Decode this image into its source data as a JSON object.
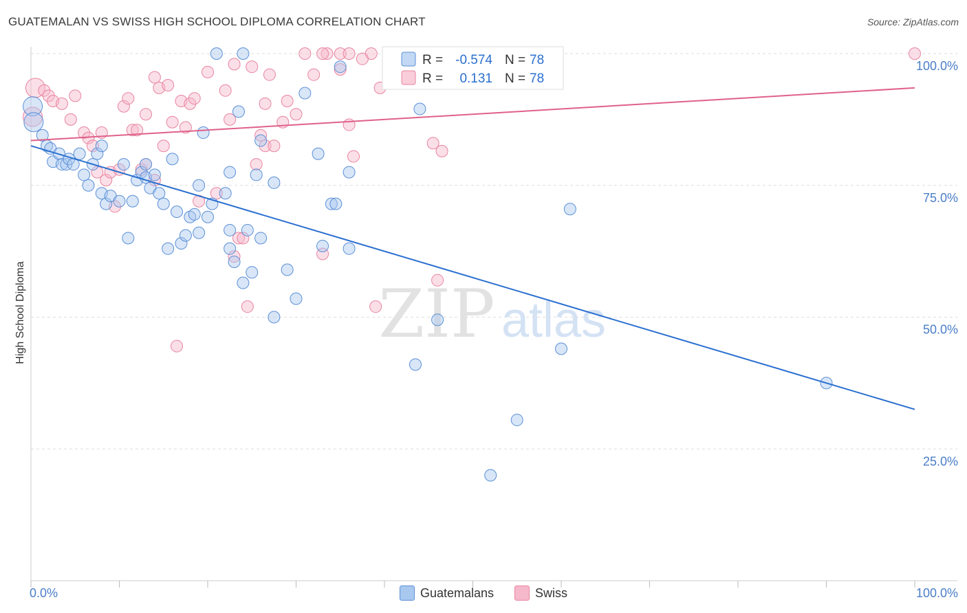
{
  "title": "GUATEMALAN VS SWISS HIGH SCHOOL DIPLOMA CORRELATION CHART",
  "source": "Source: ZipAtlas.com",
  "watermark": {
    "zip": "ZIP",
    "atlas": "atlas"
  },
  "colors": {
    "blue_fill": "#a8c8f0",
    "blue_stroke": "#5b8fd6",
    "blue_line": "#2a6fcf",
    "pink_fill": "#f6b8cb",
    "pink_stroke": "#e8849f",
    "pink_line": "#e0608a",
    "axis_text": "#4a7ec8",
    "grid": "#dddddd"
  },
  "legend_top": {
    "rows": [
      {
        "r_label": "R =",
        "r_value": "-0.574",
        "n_label": "N =",
        "n_value": "78"
      },
      {
        "r_label": "R =",
        "r_value": "0.131",
        "n_label": "N =",
        "n_value": "78"
      }
    ]
  },
  "legend_bottom": [
    "Guatemalans",
    "Swiss"
  ],
  "chart_data": {
    "type": "scatter",
    "title": "GUATEMALAN VS SWISS HIGH SCHOOL DIPLOMA CORRELATION CHART",
    "xlabel": "",
    "ylabel": "High School Diploma",
    "xlim": [
      0,
      100
    ],
    "ylim": [
      0,
      100
    ],
    "x_tick_labels": [
      "0.0%",
      "100.0%"
    ],
    "y_tick_labels": [
      "100.0%",
      "75.0%",
      "50.0%",
      "25.0%"
    ],
    "y_ticks": [
      100,
      75,
      50,
      25
    ],
    "series": [
      {
        "name": "Guatemalans",
        "r": -0.574,
        "n": 78,
        "trend": {
          "x": [
            0,
            100
          ],
          "y": [
            82.5,
            32.5
          ]
        },
        "points": [
          [
            0.2,
            90
          ],
          [
            0.3,
            87
          ],
          [
            1.3,
            84.5
          ],
          [
            1.8,
            82.5
          ],
          [
            2.2,
            82
          ],
          [
            2.5,
            79.5
          ],
          [
            3.2,
            81
          ],
          [
            3.5,
            79
          ],
          [
            4,
            79
          ],
          [
            4.3,
            80
          ],
          [
            4.8,
            79
          ],
          [
            5.5,
            81
          ],
          [
            6,
            77
          ],
          [
            6.5,
            75
          ],
          [
            7,
            79
          ],
          [
            7.5,
            81
          ],
          [
            8,
            82.5
          ],
          [
            8,
            73.5
          ],
          [
            8.5,
            71.5
          ],
          [
            9,
            73
          ],
          [
            10,
            72
          ],
          [
            10.5,
            79
          ],
          [
            11,
            65
          ],
          [
            11.5,
            72
          ],
          [
            12,
            76
          ],
          [
            12.5,
            77.5
          ],
          [
            13,
            76.5
          ],
          [
            13,
            79
          ],
          [
            13.5,
            74.5
          ],
          [
            14,
            77
          ],
          [
            14.5,
            73.5
          ],
          [
            15,
            71.5
          ],
          [
            15.5,
            63
          ],
          [
            16,
            80
          ],
          [
            16.5,
            70
          ],
          [
            17,
            64
          ],
          [
            17.5,
            65.5
          ],
          [
            18,
            69
          ],
          [
            18.5,
            69.5
          ],
          [
            19,
            66
          ],
          [
            19,
            75
          ],
          [
            19.5,
            85
          ],
          [
            20,
            69
          ],
          [
            20.5,
            71.5
          ],
          [
            21,
            100
          ],
          [
            22,
            73.5
          ],
          [
            22.5,
            77.5
          ],
          [
            22.5,
            66.5
          ],
          [
            23,
            60.5
          ],
          [
            23.5,
            89
          ],
          [
            24,
            56.5
          ],
          [
            24,
            100
          ],
          [
            24.5,
            66.5
          ],
          [
            25,
            58.5
          ],
          [
            25.5,
            77
          ],
          [
            26,
            83.5
          ],
          [
            26,
            65
          ],
          [
            27.5,
            75.5
          ],
          [
            27.5,
            50
          ],
          [
            29,
            59
          ],
          [
            30,
            53.5
          ],
          [
            31,
            92.5
          ],
          [
            32.5,
            81
          ],
          [
            33,
            63.5
          ],
          [
            34,
            71.5
          ],
          [
            34.5,
            71.5
          ],
          [
            35,
            97.5
          ],
          [
            36,
            77.5
          ],
          [
            36,
            63
          ],
          [
            44,
            89.5
          ],
          [
            43.5,
            41
          ],
          [
            46,
            49.5
          ],
          [
            52,
            20
          ],
          [
            55,
            30.5
          ],
          [
            60,
            44
          ],
          [
            61,
            70.5
          ],
          [
            90,
            37.5
          ],
          [
            22.5,
            63
          ]
        ]
      },
      {
        "name": "Swiss",
        "r": 0.131,
        "n": 78,
        "trend": {
          "x": [
            0,
            100
          ],
          "y": [
            83.5,
            93.5
          ]
        },
        "points": [
          [
            0.2,
            88
          ],
          [
            0.5,
            93.5
          ],
          [
            1.5,
            93
          ],
          [
            2,
            92
          ],
          [
            2.5,
            91
          ],
          [
            3.5,
            90.5
          ],
          [
            4.5,
            87.5
          ],
          [
            5,
            92
          ],
          [
            6,
            85
          ],
          [
            6.5,
            84
          ],
          [
            7,
            82.5
          ],
          [
            7.5,
            77.5
          ],
          [
            8,
            85
          ],
          [
            8.5,
            76
          ],
          [
            9,
            77.5
          ],
          [
            9.5,
            71
          ],
          [
            10,
            78
          ],
          [
            10.5,
            90
          ],
          [
            11,
            91.5
          ],
          [
            11.5,
            85.5
          ],
          [
            12,
            85.5
          ],
          [
            12.5,
            78
          ],
          [
            13,
            79
          ],
          [
            13,
            88.5
          ],
          [
            14,
            95.5
          ],
          [
            14.5,
            93.5
          ],
          [
            15,
            82.5
          ],
          [
            15.5,
            94
          ],
          [
            16,
            87
          ],
          [
            16.5,
            44.5
          ],
          [
            17,
            91
          ],
          [
            17.5,
            86
          ],
          [
            18,
            90.5
          ],
          [
            18.5,
            91.5
          ],
          [
            19,
            72
          ],
          [
            20,
            96.5
          ],
          [
            21,
            73.5
          ],
          [
            22,
            93
          ],
          [
            22.5,
            87.5
          ],
          [
            23,
            61.5
          ],
          [
            23,
            98
          ],
          [
            23.5,
            65
          ],
          [
            24,
            65
          ],
          [
            24.5,
            52
          ],
          [
            25,
            97.5
          ],
          [
            25.5,
            79
          ],
          [
            26,
            84.5
          ],
          [
            26.5,
            82.5
          ],
          [
            27,
            96
          ],
          [
            27.5,
            82.5
          ],
          [
            28.5,
            87
          ],
          [
            29,
            91
          ],
          [
            30,
            88.5
          ],
          [
            31,
            100
          ],
          [
            32,
            96
          ],
          [
            33,
            62
          ],
          [
            33.5,
            100
          ],
          [
            35,
            100
          ],
          [
            35,
            97
          ],
          [
            36,
            86.5
          ],
          [
            36.5,
            80.5
          ],
          [
            38.5,
            100
          ],
          [
            39,
            52
          ],
          [
            39.5,
            93.5
          ],
          [
            41,
            100
          ],
          [
            41.5,
            100
          ],
          [
            44,
            100
          ],
          [
            45,
            99.5
          ],
          [
            45.5,
            83
          ],
          [
            46,
            57
          ],
          [
            46.5,
            81.5
          ],
          [
            100,
            100
          ],
          [
            36,
            100
          ],
          [
            33,
            100
          ],
          [
            26.5,
            90.5
          ],
          [
            37.5,
            99
          ],
          [
            45,
            97
          ],
          [
            14,
            76
          ]
        ]
      }
    ]
  }
}
